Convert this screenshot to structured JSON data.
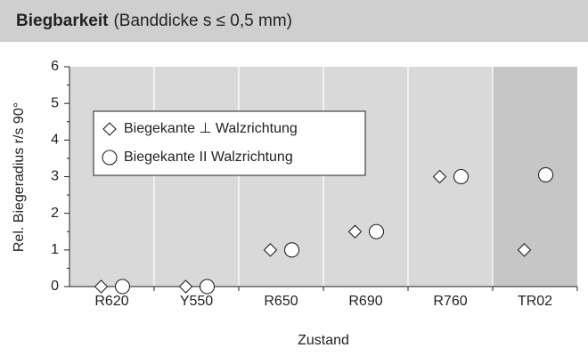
{
  "chart_data": {
    "type": "dot",
    "title": "Biegbarkeit",
    "subtitle": "(Banddicke s ≤ 0,5 mm)",
    "x_label": "Zustand",
    "y_label": "Rel. Biegeradius r/s 90°",
    "categories": [
      "R620",
      "Y550",
      "R650",
      "R690",
      "R760",
      "TR02"
    ],
    "series": [
      {
        "name": "Biegekante ⊥  Walzrichtung",
        "marker": "diamond",
        "color": "#ffffff",
        "values": [
          0,
          0,
          1,
          1.5,
          3,
          1
        ]
      },
      {
        "name": "Biegekante II  Walzrichtung",
        "marker": "circle",
        "color": "#ffffff",
        "values": [
          0,
          0,
          1,
          1.5,
          3,
          3.05
        ]
      }
    ],
    "ylim": [
      0,
      6
    ],
    "yticks": [
      0,
      1,
      2,
      3,
      4,
      5,
      6
    ],
    "yminorticks": [
      0.5,
      1.5,
      2.5,
      3.5,
      4.5,
      5.5
    ],
    "legend": "upper left"
  }
}
